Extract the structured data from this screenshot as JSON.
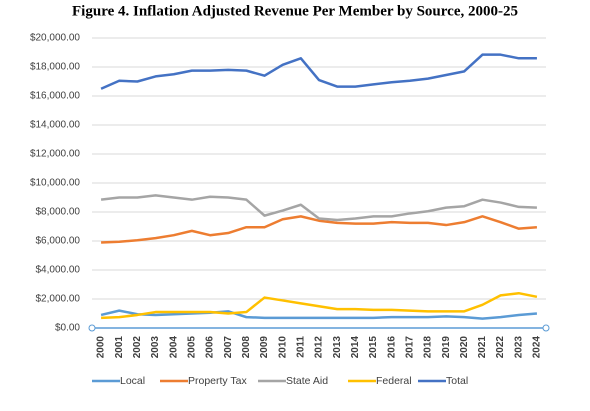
{
  "chart_data": {
    "type": "line",
    "title": "Figure 4. Inflation Adjusted Revenue Per Member by Source, 2000-25",
    "categories": [
      "2000",
      "2001",
      "2002",
      "2003",
      "2004",
      "2005",
      "2006",
      "2007",
      "2008",
      "2009",
      "2010",
      "2011",
      "2012",
      "2013",
      "2014",
      "2015",
      "2016",
      "2017",
      "2018",
      "2019",
      "2020",
      "2021",
      "2022",
      "2023",
      "2024"
    ],
    "series": [
      {
        "name": "Local",
        "color": "#5b9bd5",
        "values": [
          900,
          1200,
          950,
          900,
          950,
          1000,
          1050,
          1150,
          750,
          700,
          700,
          700,
          700,
          700,
          700,
          700,
          750,
          750,
          750,
          800,
          750,
          650,
          750,
          900,
          1000
        ]
      },
      {
        "name": "Property Tax",
        "color": "#ed7d31",
        "values": [
          5900,
          5950,
          6050,
          6200,
          6400,
          6700,
          6400,
          6550,
          6950,
          6950,
          7500,
          7700,
          7400,
          7250,
          7200,
          7200,
          7300,
          7250,
          7250,
          7100,
          7300,
          7700,
          7300,
          6850,
          6950
        ]
      },
      {
        "name": "State Aid",
        "color": "#a5a5a5",
        "values": [
          8850,
          9000,
          9000,
          9150,
          9000,
          8850,
          9050,
          9000,
          8850,
          7750,
          8100,
          8500,
          7550,
          7450,
          7550,
          7700,
          7700,
          7900,
          8050,
          8300,
          8400,
          8850,
          8650,
          8350,
          8300
        ]
      },
      {
        "name": "Federal",
        "color": "#ffc000",
        "values": [
          700,
          750,
          900,
          1100,
          1100,
          1100,
          1100,
          1000,
          1100,
          2100,
          1900,
          1700,
          1500,
          1300,
          1300,
          1250,
          1250,
          1200,
          1150,
          1150,
          1150,
          1600,
          2250,
          2400,
          2150
        ]
      },
      {
        "name": "Total",
        "color": "#4472c4",
        "values": [
          16500,
          17050,
          17000,
          17350,
          17500,
          17750,
          17750,
          17800,
          17750,
          17400,
          18150,
          18600,
          17100,
          16650,
          16650,
          16800,
          16950,
          17050,
          17200,
          17450,
          17700,
          18850,
          18850,
          18600,
          18600
        ]
      }
    ],
    "ylim": [
      0,
      20000
    ],
    "yticks": [
      {
        "value": 0,
        "label": "$0.00"
      },
      {
        "value": 2000,
        "label": "$2,000.00"
      },
      {
        "value": 4000,
        "label": "$4,000.00"
      },
      {
        "value": 6000,
        "label": "$6,000.00"
      },
      {
        "value": 8000,
        "label": "$8,000.00"
      },
      {
        "value": 10000,
        "label": "$10,000.00"
      },
      {
        "value": 12000,
        "label": "$12,000.00"
      },
      {
        "value": 14000,
        "label": "$14,000.00"
      },
      {
        "value": 16000,
        "label": "$16,000.00"
      },
      {
        "value": 18000,
        "label": "$18,000.00"
      },
      {
        "value": 20000,
        "label": "$20,000.00"
      }
    ],
    "grid": true,
    "legend": "bottom"
  }
}
